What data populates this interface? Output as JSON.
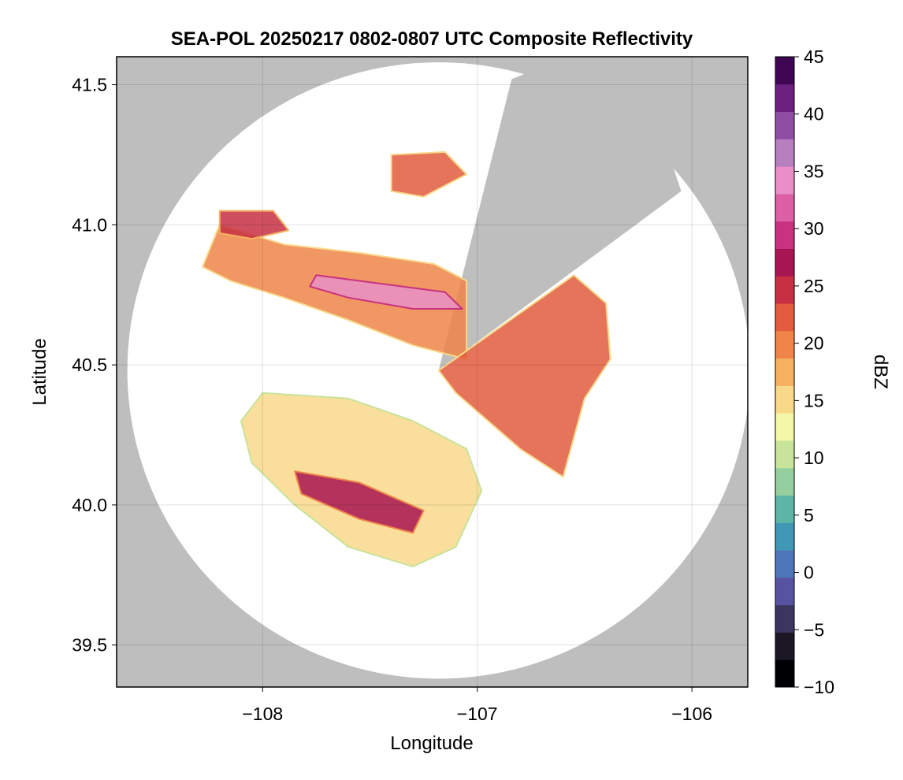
{
  "chart_data": {
    "type": "heatmap",
    "title": "SEA-POL 20250217 0802-0807 UTC Composite Reflectivity",
    "xlabel": "Longitude",
    "ylabel": "Latitude",
    "xlim": [
      -108.68,
      -105.74
    ],
    "ylim": [
      39.35,
      41.6
    ],
    "xticks": [
      -108,
      -107,
      -106
    ],
    "xtick_labels": [
      "−108",
      "−107",
      "−106"
    ],
    "yticks": [
      39.5,
      40.0,
      40.5,
      41.0,
      41.5
    ],
    "ytick_labels": [
      "39.5",
      "40.0",
      "40.5",
      "41.0",
      "41.5"
    ],
    "grid": true,
    "background_color": "#bebebe",
    "radar": {
      "center_lon": -107.18,
      "center_lat": 40.48,
      "range_lon": 1.45,
      "range_lat": 1.1,
      "blocked_sectors": [
        {
          "from_lon": -106.84,
          "from_lat": 41.52,
          "to_lon": -106.05,
          "to_lat": 41.12
        }
      ]
    },
    "echo_regions": [
      {
        "name": "northwest band",
        "polygon": [
          [
            -108.2,
            41.0
          ],
          [
            -107.9,
            40.93
          ],
          [
            -107.55,
            40.9
          ],
          [
            -107.2,
            40.86
          ],
          [
            -107.05,
            40.8
          ],
          [
            -107.05,
            40.52
          ],
          [
            -107.3,
            40.57
          ],
          [
            -107.6,
            40.66
          ],
          [
            -107.9,
            40.74
          ],
          [
            -108.15,
            40.8
          ],
          [
            -108.28,
            40.85
          ]
        ],
        "dbz_mean": 20
      },
      {
        "name": "northwest core",
        "polygon": [
          [
            -107.75,
            40.82
          ],
          [
            -107.45,
            40.79
          ],
          [
            -107.15,
            40.76
          ],
          [
            -107.07,
            40.7
          ],
          [
            -107.3,
            40.7
          ],
          [
            -107.6,
            40.74
          ],
          [
            -107.78,
            40.78
          ]
        ],
        "dbz_mean": 35
      },
      {
        "name": "west cell",
        "polygon": [
          [
            -108.2,
            41.05
          ],
          [
            -107.95,
            41.05
          ],
          [
            -107.88,
            40.98
          ],
          [
            -108.05,
            40.95
          ],
          [
            -108.2,
            40.97
          ]
        ],
        "dbz_mean": 24
      },
      {
        "name": "north cell",
        "polygon": [
          [
            -107.4,
            41.25
          ],
          [
            -107.15,
            41.26
          ],
          [
            -107.05,
            41.18
          ],
          [
            -107.25,
            41.1
          ],
          [
            -107.4,
            41.12
          ]
        ],
        "dbz_mean": 22
      },
      {
        "name": "northeast band",
        "polygon": [
          [
            -107.18,
            40.48
          ],
          [
            -106.55,
            40.82
          ],
          [
            -106.4,
            40.72
          ],
          [
            -106.38,
            40.52
          ],
          [
            -106.5,
            40.38
          ],
          [
            -106.6,
            40.1
          ],
          [
            -106.8,
            40.2
          ],
          [
            -106.98,
            40.32
          ],
          [
            -107.1,
            40.4
          ]
        ],
        "dbz_mean": 22
      },
      {
        "name": "southwest band",
        "polygon": [
          [
            -108.0,
            40.4
          ],
          [
            -107.6,
            40.38
          ],
          [
            -107.3,
            40.3
          ],
          [
            -107.05,
            40.2
          ],
          [
            -106.98,
            40.05
          ],
          [
            -107.1,
            39.85
          ],
          [
            -107.3,
            39.78
          ],
          [
            -107.6,
            39.85
          ],
          [
            -107.85,
            40.0
          ],
          [
            -108.05,
            40.15
          ],
          [
            -108.1,
            40.3
          ]
        ],
        "dbz_mean": 16
      },
      {
        "name": "southwest core",
        "polygon": [
          [
            -107.85,
            40.12
          ],
          [
            -107.55,
            40.08
          ],
          [
            -107.25,
            39.98
          ],
          [
            -107.3,
            39.9
          ],
          [
            -107.55,
            39.95
          ],
          [
            -107.82,
            40.04
          ]
        ],
        "dbz_mean": 26
      }
    ],
    "colorbar": {
      "label": "dBZ",
      "min": -10,
      "max": 45,
      "ticks": [
        -10,
        -5,
        0,
        5,
        10,
        15,
        20,
        25,
        30,
        35,
        40,
        45
      ],
      "tick_labels": [
        "−10",
        "−5",
        "0",
        "5",
        "10",
        "15",
        "20",
        "25",
        "30",
        "35",
        "40",
        "45"
      ],
      "colors": [
        "#000004",
        "#1b1725",
        "#3b3560",
        "#5654a0",
        "#4f76b8",
        "#3f98b6",
        "#5db5a6",
        "#96cf9f",
        "#c8e39a",
        "#f4f6a8",
        "#f8d98a",
        "#f5b160",
        "#ef8548",
        "#e25c3d",
        "#c73043",
        "#a71552",
        "#c8327f",
        "#dd5fa5",
        "#e78fc6",
        "#b67fc0",
        "#8f4ea3",
        "#6c2080",
        "#3e0651"
      ]
    }
  }
}
